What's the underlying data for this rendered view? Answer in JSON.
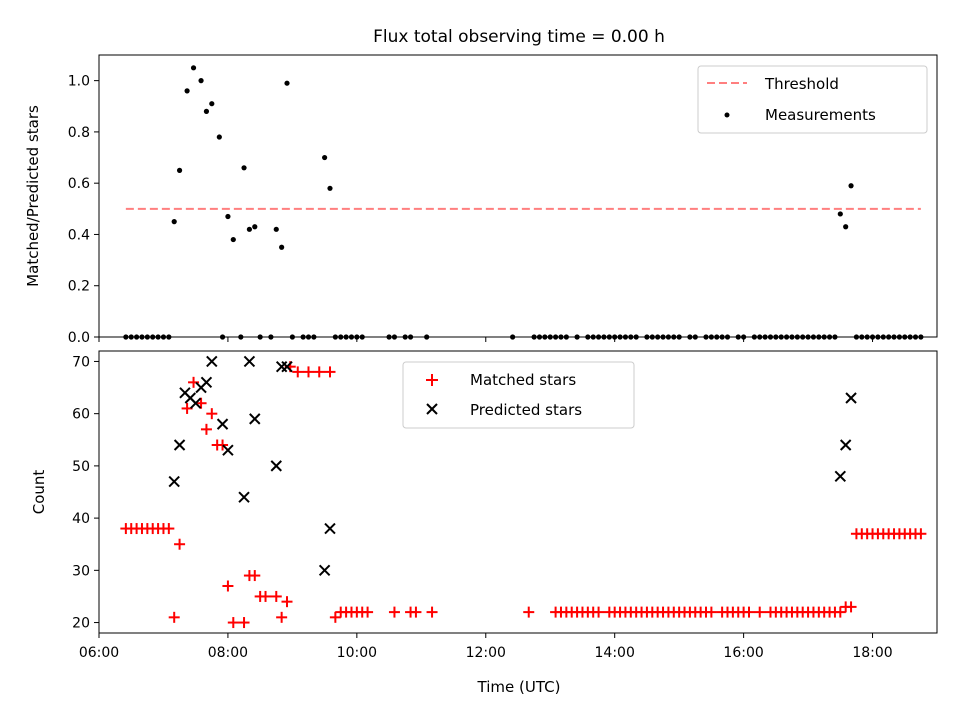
{
  "chart_data": [
    {
      "type": "scatter",
      "title": "Flux total observing time = 0.00 h",
      "xlabel": "",
      "ylabel": "Matched/Predicted stars",
      "xlim": [
        "06:00",
        "19:00"
      ],
      "ylim": [
        0,
        1.1
      ],
      "yticks": [
        "0.0",
        "0.2",
        "0.4",
        "0.6",
        "0.8",
        "1.0"
      ],
      "legend_position": "top-right",
      "threshold": {
        "name": "Threshold",
        "value": 0.5,
        "x_range": [
          "06:25",
          "18:45"
        ],
        "color": "#ff7f7f"
      },
      "series": [
        {
          "name": "Measurements",
          "color": "#000000",
          "points": [
            [
              "06:25",
              0
            ],
            [
              "06:30",
              0
            ],
            [
              "06:35",
              0
            ],
            [
              "06:40",
              0
            ],
            [
              "06:45",
              0
            ],
            [
              "06:50",
              0
            ],
            [
              "06:55",
              0
            ],
            [
              "07:00",
              0
            ],
            [
              "07:05",
              0
            ],
            [
              "07:10",
              0.45
            ],
            [
              "07:15",
              0.65
            ],
            [
              "07:22",
              0.96
            ],
            [
              "07:28",
              1.05
            ],
            [
              "07:35",
              1.0
            ],
            [
              "07:40",
              0.88
            ],
            [
              "07:45",
              0.91
            ],
            [
              "07:52",
              0.78
            ],
            [
              "07:55",
              0
            ],
            [
              "08:00",
              0.47
            ],
            [
              "08:05",
              0.38
            ],
            [
              "08:12",
              0
            ],
            [
              "08:15",
              0.66
            ],
            [
              "08:20",
              0.42
            ],
            [
              "08:25",
              0.43
            ],
            [
              "08:30",
              0
            ],
            [
              "08:40",
              0
            ],
            [
              "08:45",
              0.42
            ],
            [
              "08:50",
              0.35
            ],
            [
              "08:55",
              0.99
            ],
            [
              "09:00",
              0
            ],
            [
              "09:10",
              0
            ],
            [
              "09:15",
              0
            ],
            [
              "09:20",
              0
            ],
            [
              "09:30",
              0.7
            ],
            [
              "09:35",
              0.58
            ],
            [
              "09:40",
              0
            ],
            [
              "09:45",
              0
            ],
            [
              "09:50",
              0
            ],
            [
              "09:55",
              0
            ],
            [
              "10:00",
              0
            ],
            [
              "10:05",
              0
            ],
            [
              "10:30",
              0
            ],
            [
              "10:35",
              0
            ],
            [
              "10:45",
              0
            ],
            [
              "10:50",
              0
            ],
            [
              "11:05",
              0
            ],
            [
              "12:25",
              0
            ],
            [
              "12:45",
              0
            ],
            [
              "12:50",
              0
            ],
            [
              "12:55",
              0
            ],
            [
              "13:00",
              0
            ],
            [
              "13:05",
              0
            ],
            [
              "13:10",
              0
            ],
            [
              "13:15",
              0
            ],
            [
              "13:25",
              0
            ],
            [
              "13:35",
              0
            ],
            [
              "13:40",
              0
            ],
            [
              "13:45",
              0
            ],
            [
              "13:50",
              0
            ],
            [
              "13:55",
              0
            ],
            [
              "14:00",
              0
            ],
            [
              "14:05",
              0
            ],
            [
              "14:10",
              0
            ],
            [
              "14:15",
              0
            ],
            [
              "14:20",
              0
            ],
            [
              "14:30",
              0
            ],
            [
              "14:35",
              0
            ],
            [
              "14:40",
              0
            ],
            [
              "14:45",
              0
            ],
            [
              "14:50",
              0
            ],
            [
              "14:55",
              0
            ],
            [
              "15:00",
              0
            ],
            [
              "15:10",
              0
            ],
            [
              "15:15",
              0
            ],
            [
              "15:25",
              0
            ],
            [
              "15:30",
              0
            ],
            [
              "15:35",
              0
            ],
            [
              "15:40",
              0
            ],
            [
              "15:45",
              0
            ],
            [
              "15:55",
              0
            ],
            [
              "16:00",
              0
            ],
            [
              "16:10",
              0
            ],
            [
              "16:15",
              0
            ],
            [
              "16:20",
              0
            ],
            [
              "16:25",
              0
            ],
            [
              "16:30",
              0
            ],
            [
              "16:35",
              0
            ],
            [
              "16:40",
              0
            ],
            [
              "16:45",
              0
            ],
            [
              "16:50",
              0
            ],
            [
              "16:55",
              0
            ],
            [
              "17:00",
              0
            ],
            [
              "17:05",
              0
            ],
            [
              "17:10",
              0
            ],
            [
              "17:15",
              0
            ],
            [
              "17:20",
              0
            ],
            [
              "17:25",
              0
            ],
            [
              "17:30",
              0.48
            ],
            [
              "17:35",
              0.43
            ],
            [
              "17:40",
              0.59
            ],
            [
              "17:45",
              0
            ],
            [
              "17:50",
              0
            ],
            [
              "17:55",
              0
            ],
            [
              "18:00",
              0
            ],
            [
              "18:05",
              0
            ],
            [
              "18:10",
              0
            ],
            [
              "18:15",
              0
            ],
            [
              "18:20",
              0
            ],
            [
              "18:25",
              0
            ],
            [
              "18:30",
              0
            ],
            [
              "18:35",
              0
            ],
            [
              "18:40",
              0
            ],
            [
              "18:45",
              0
            ]
          ]
        }
      ]
    },
    {
      "type": "scatter",
      "title": "",
      "xlabel": "Time (UTC)",
      "ylabel": "Count",
      "xlim": [
        "06:00",
        "19:00"
      ],
      "ylim": [
        18,
        72
      ],
      "xticks": [
        "06:00",
        "08:00",
        "10:00",
        "12:00",
        "14:00",
        "16:00",
        "18:00"
      ],
      "yticks": [
        "20",
        "30",
        "40",
        "50",
        "60",
        "70"
      ],
      "legend_position": "top-center",
      "series": [
        {
          "name": "Matched stars",
          "color": "#ff0000",
          "marker": "plus",
          "points": [
            [
              "06:25",
              38
            ],
            [
              "06:30",
              38
            ],
            [
              "06:35",
              38
            ],
            [
              "06:40",
              38
            ],
            [
              "06:45",
              38
            ],
            [
              "06:50",
              38
            ],
            [
              "06:55",
              38
            ],
            [
              "07:00",
              38
            ],
            [
              "07:05",
              38
            ],
            [
              "07:10",
              21
            ],
            [
              "07:15",
              35
            ],
            [
              "07:22",
              61
            ],
            [
              "07:28",
              66
            ],
            [
              "07:35",
              62
            ],
            [
              "07:40",
              57
            ],
            [
              "07:45",
              60
            ],
            [
              "07:50",
              54
            ],
            [
              "07:55",
              54
            ],
            [
              "08:00",
              27
            ],
            [
              "08:05",
              20
            ],
            [
              "08:15",
              20
            ],
            [
              "08:20",
              29
            ],
            [
              "08:25",
              29
            ],
            [
              "08:30",
              25
            ],
            [
              "08:35",
              25
            ],
            [
              "08:45",
              25
            ],
            [
              "08:50",
              21
            ],
            [
              "08:55",
              24
            ],
            [
              "08:58",
              69
            ],
            [
              "09:05",
              68
            ],
            [
              "09:15",
              68
            ],
            [
              "09:25",
              68
            ],
            [
              "09:35",
              68
            ],
            [
              "09:40",
              21
            ],
            [
              "09:45",
              22
            ],
            [
              "09:50",
              22
            ],
            [
              "09:55",
              22
            ],
            [
              "10:00",
              22
            ],
            [
              "10:05",
              22
            ],
            [
              "10:10",
              22
            ],
            [
              "10:35",
              22
            ],
            [
              "10:50",
              22
            ],
            [
              "10:55",
              22
            ],
            [
              "11:10",
              22
            ],
            [
              "12:40",
              22
            ],
            [
              "13:05",
              22
            ],
            [
              "13:10",
              22
            ],
            [
              "13:15",
              22
            ],
            [
              "13:20",
              22
            ],
            [
              "13:25",
              22
            ],
            [
              "13:30",
              22
            ],
            [
              "13:35",
              22
            ],
            [
              "13:40",
              22
            ],
            [
              "13:45",
              22
            ],
            [
              "13:55",
              22
            ],
            [
              "14:00",
              22
            ],
            [
              "14:05",
              22
            ],
            [
              "14:10",
              22
            ],
            [
              "14:15",
              22
            ],
            [
              "14:20",
              22
            ],
            [
              "14:25",
              22
            ],
            [
              "14:30",
              22
            ],
            [
              "14:35",
              22
            ],
            [
              "14:40",
              22
            ],
            [
              "14:45",
              22
            ],
            [
              "14:50",
              22
            ],
            [
              "14:55",
              22
            ],
            [
              "15:00",
              22
            ],
            [
              "15:05",
              22
            ],
            [
              "15:10",
              22
            ],
            [
              "15:15",
              22
            ],
            [
              "15:20",
              22
            ],
            [
              "15:25",
              22
            ],
            [
              "15:30",
              22
            ],
            [
              "15:40",
              22
            ],
            [
              "15:45",
              22
            ],
            [
              "15:50",
              22
            ],
            [
              "15:55",
              22
            ],
            [
              "16:00",
              22
            ],
            [
              "16:05",
              22
            ],
            [
              "16:15",
              22
            ],
            [
              "16:25",
              22
            ],
            [
              "16:30",
              22
            ],
            [
              "16:35",
              22
            ],
            [
              "16:40",
              22
            ],
            [
              "16:45",
              22
            ],
            [
              "16:50",
              22
            ],
            [
              "16:55",
              22
            ],
            [
              "17:00",
              22
            ],
            [
              "17:05",
              22
            ],
            [
              "17:10",
              22
            ],
            [
              "17:15",
              22
            ],
            [
              "17:20",
              22
            ],
            [
              "17:25",
              22
            ],
            [
              "17:30",
              22
            ],
            [
              "17:35",
              23
            ],
            [
              "17:40",
              23
            ],
            [
              "17:45",
              37
            ],
            [
              "17:50",
              37
            ],
            [
              "17:55",
              37
            ],
            [
              "18:00",
              37
            ],
            [
              "18:05",
              37
            ],
            [
              "18:10",
              37
            ],
            [
              "18:15",
              37
            ],
            [
              "18:20",
              37
            ],
            [
              "18:25",
              37
            ],
            [
              "18:30",
              37
            ],
            [
              "18:35",
              37
            ],
            [
              "18:40",
              37
            ],
            [
              "18:45",
              37
            ]
          ]
        },
        {
          "name": "Predicted stars",
          "color": "#000000",
          "marker": "x",
          "points": [
            [
              "07:10",
              47
            ],
            [
              "07:15",
              54
            ],
            [
              "07:20",
              64
            ],
            [
              "07:25",
              63
            ],
            [
              "07:30",
              62
            ],
            [
              "07:35",
              65
            ],
            [
              "07:40",
              66
            ],
            [
              "07:45",
              70
            ],
            [
              "07:55",
              58
            ],
            [
              "08:00",
              53
            ],
            [
              "08:15",
              44
            ],
            [
              "08:20",
              70
            ],
            [
              "08:25",
              59
            ],
            [
              "08:45",
              50
            ],
            [
              "08:50",
              69
            ],
            [
              "08:55",
              69
            ],
            [
              "09:30",
              30
            ],
            [
              "09:35",
              38
            ],
            [
              "17:30",
              48
            ],
            [
              "17:35",
              54
            ],
            [
              "17:40",
              63
            ]
          ]
        }
      ]
    }
  ]
}
